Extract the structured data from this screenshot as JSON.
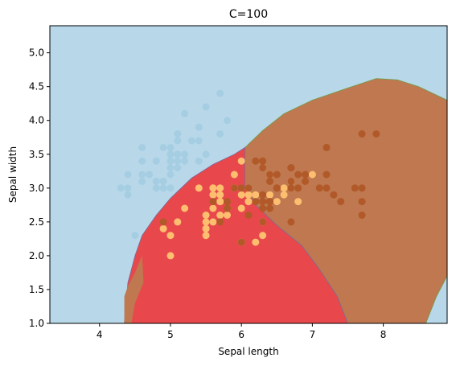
{
  "chart_data": {
    "type": "scatter",
    "title": "C=100",
    "xlabel": "Sepal length",
    "ylabel": "Sepal width",
    "xlim": [
      3.3,
      8.9
    ],
    "ylim": [
      1.0,
      5.4
    ],
    "xticks": [
      "4",
      "5",
      "6",
      "7",
      "8"
    ],
    "xtick_values": [
      4,
      5,
      6,
      7,
      8
    ],
    "yticks": [
      "1.0",
      "1.5",
      "2.0",
      "2.5",
      "3.0",
      "3.5",
      "4.0",
      "4.5",
      "5.0"
    ],
    "ytick_values": [
      1.0,
      1.5,
      2.0,
      2.5,
      3.0,
      3.5,
      4.0,
      4.5,
      5.0
    ],
    "grid": false,
    "legend": "none",
    "regions": [
      {
        "class": "class-0",
        "color": "#b8d8e9"
      },
      {
        "class": "class-1",
        "color": "#e8484c"
      },
      {
        "class": "class-2",
        "color": "#bf7850"
      }
    ],
    "region_boundaries": {
      "class1_polygon": [
        [
          4.35,
          1.0
        ],
        [
          4.4,
          1.6
        ],
        [
          4.5,
          2.0
        ],
        [
          4.6,
          2.3
        ],
        [
          4.8,
          2.6
        ],
        [
          5.0,
          2.85
        ],
        [
          5.3,
          3.15
        ],
        [
          5.6,
          3.35
        ],
        [
          5.9,
          3.5
        ],
        [
          6.05,
          3.6
        ],
        [
          6.05,
          3.0
        ],
        [
          6.2,
          2.75
        ],
        [
          6.5,
          2.45
        ],
        [
          6.85,
          2.15
        ],
        [
          7.1,
          1.8
        ],
        [
          7.35,
          1.4
        ],
        [
          7.5,
          1.0
        ]
      ],
      "class2_polygon": [
        [
          4.35,
          1.0
        ],
        [
          4.35,
          1.4
        ],
        [
          4.4,
          1.55
        ],
        [
          4.5,
          1.75
        ],
        [
          4.6,
          2.0
        ],
        [
          4.62,
          1.6
        ],
        [
          4.5,
          1.3
        ],
        [
          4.45,
          1.0
        ],
        [
          4.35,
          1.0
        ]
      ],
      "class2_main_polygon": [
        [
          6.05,
          3.6
        ],
        [
          6.3,
          3.85
        ],
        [
          6.6,
          4.1
        ],
        [
          7.0,
          4.3
        ],
        [
          7.5,
          4.48
        ],
        [
          7.9,
          4.62
        ],
        [
          8.2,
          4.6
        ],
        [
          8.5,
          4.5
        ],
        [
          8.9,
          4.3
        ],
        [
          8.9,
          1.7
        ],
        [
          8.75,
          1.4
        ],
        [
          8.6,
          1.0
        ],
        [
          7.5,
          1.0
        ],
        [
          7.35,
          1.4
        ],
        [
          7.1,
          1.8
        ],
        [
          6.85,
          2.15
        ],
        [
          6.5,
          2.45
        ],
        [
          6.2,
          2.75
        ],
        [
          6.05,
          3.0
        ]
      ]
    },
    "series": [
      {
        "class": "class-0",
        "color": "#a6cee3",
        "points": [
          [
            5.1,
            3.5
          ],
          [
            4.9,
            3.0
          ],
          [
            4.7,
            3.2
          ],
          [
            4.6,
            3.1
          ],
          [
            5.0,
            3.6
          ],
          [
            5.4,
            3.9
          ],
          [
            4.6,
            3.4
          ],
          [
            5.0,
            3.4
          ],
          [
            4.4,
            2.9
          ],
          [
            4.9,
            3.1
          ],
          [
            5.4,
            3.7
          ],
          [
            4.8,
            3.4
          ],
          [
            4.8,
            3.0
          ],
          [
            4.3,
            3.0
          ],
          [
            5.8,
            4.0
          ],
          [
            5.7,
            4.4
          ],
          [
            5.4,
            3.9
          ],
          [
            5.1,
            3.5
          ],
          [
            5.7,
            3.8
          ],
          [
            5.1,
            3.8
          ],
          [
            5.4,
            3.4
          ],
          [
            5.1,
            3.7
          ],
          [
            4.6,
            3.6
          ],
          [
            5.1,
            3.3
          ],
          [
            4.8,
            3.4
          ],
          [
            5.0,
            3.0
          ],
          [
            5.0,
            3.4
          ],
          [
            5.2,
            3.5
          ],
          [
            5.2,
            3.4
          ],
          [
            4.7,
            3.2
          ],
          [
            4.8,
            3.1
          ],
          [
            5.4,
            3.4
          ],
          [
            5.2,
            4.1
          ],
          [
            5.5,
            4.2
          ],
          [
            4.9,
            3.1
          ],
          [
            5.0,
            3.2
          ],
          [
            5.5,
            3.5
          ],
          [
            4.9,
            3.6
          ],
          [
            4.4,
            3.0
          ],
          [
            5.1,
            3.4
          ],
          [
            5.0,
            3.5
          ],
          [
            4.5,
            2.3
          ],
          [
            4.4,
            3.2
          ],
          [
            5.0,
            3.5
          ],
          [
            5.1,
            3.8
          ],
          [
            4.8,
            3.0
          ],
          [
            5.1,
            3.8
          ],
          [
            4.6,
            3.2
          ],
          [
            5.3,
            3.7
          ],
          [
            5.0,
            3.3
          ]
        ]
      },
      {
        "class": "class-1",
        "color": "#fdbf6f",
        "points": [
          [
            7.0,
            3.2
          ],
          [
            6.4,
            3.2
          ],
          [
            6.9,
            3.1
          ],
          [
            5.5,
            2.3
          ],
          [
            6.5,
            2.8
          ],
          [
            5.7,
            2.8
          ],
          [
            6.3,
            3.3
          ],
          [
            4.9,
            2.4
          ],
          [
            6.6,
            2.9
          ],
          [
            5.2,
            2.7
          ],
          [
            5.0,
            2.0
          ],
          [
            5.9,
            3.0
          ],
          [
            6.0,
            2.2
          ],
          [
            6.1,
            2.9
          ],
          [
            5.6,
            2.9
          ],
          [
            6.7,
            3.1
          ],
          [
            5.6,
            3.0
          ],
          [
            5.8,
            2.7
          ],
          [
            6.2,
            2.2
          ],
          [
            5.6,
            2.5
          ],
          [
            5.9,
            3.2
          ],
          [
            6.1,
            2.8
          ],
          [
            6.3,
            2.5
          ],
          [
            6.1,
            2.8
          ],
          [
            6.4,
            2.9
          ],
          [
            6.6,
            3.0
          ],
          [
            6.8,
            2.8
          ],
          [
            6.7,
            3.0
          ],
          [
            6.0,
            2.9
          ],
          [
            5.7,
            2.6
          ],
          [
            5.5,
            2.4
          ],
          [
            5.5,
            2.4
          ],
          [
            5.8,
            2.7
          ],
          [
            6.0,
            2.7
          ],
          [
            5.4,
            3.0
          ],
          [
            6.0,
            3.4
          ],
          [
            6.7,
            3.1
          ],
          [
            6.3,
            2.3
          ],
          [
            5.6,
            3.0
          ],
          [
            5.5,
            2.5
          ],
          [
            5.5,
            2.6
          ],
          [
            6.1,
            3.0
          ],
          [
            5.8,
            2.6
          ],
          [
            5.0,
            2.3
          ],
          [
            5.6,
            2.7
          ],
          [
            5.7,
            3.0
          ],
          [
            5.7,
            2.9
          ],
          [
            6.2,
            2.9
          ],
          [
            5.1,
            2.5
          ],
          [
            5.7,
            2.8
          ]
        ]
      },
      {
        "class": "class-2",
        "color": "#b15928",
        "points": [
          [
            6.3,
            3.3
          ],
          [
            5.8,
            2.7
          ],
          [
            7.1,
            3.0
          ],
          [
            6.3,
            2.9
          ],
          [
            6.5,
            3.0
          ],
          [
            7.6,
            3.0
          ],
          [
            4.9,
            2.5
          ],
          [
            7.3,
            2.9
          ],
          [
            6.7,
            2.5
          ],
          [
            7.2,
            3.6
          ],
          [
            6.5,
            3.2
          ],
          [
            6.4,
            2.7
          ],
          [
            6.8,
            3.0
          ],
          [
            5.7,
            2.5
          ],
          [
            5.8,
            2.8
          ],
          [
            6.4,
            3.2
          ],
          [
            6.5,
            3.0
          ],
          [
            7.7,
            3.8
          ],
          [
            7.7,
            2.6
          ],
          [
            6.0,
            2.2
          ],
          [
            6.9,
            3.2
          ],
          [
            5.6,
            2.8
          ],
          [
            7.7,
            2.8
          ],
          [
            6.3,
            2.7
          ],
          [
            6.7,
            3.3
          ],
          [
            7.2,
            3.2
          ],
          [
            6.2,
            2.8
          ],
          [
            6.1,
            3.0
          ],
          [
            6.4,
            2.8
          ],
          [
            7.2,
            3.0
          ],
          [
            7.4,
            2.8
          ],
          [
            7.9,
            3.8
          ],
          [
            6.4,
            2.8
          ],
          [
            6.3,
            2.8
          ],
          [
            6.1,
            2.6
          ],
          [
            7.7,
            3.0
          ],
          [
            6.3,
            3.4
          ],
          [
            6.4,
            3.1
          ],
          [
            6.0,
            3.0
          ],
          [
            6.9,
            3.1
          ],
          [
            6.7,
            3.1
          ],
          [
            6.9,
            3.1
          ],
          [
            5.8,
            2.7
          ],
          [
            6.8,
            3.2
          ],
          [
            6.7,
            3.3
          ],
          [
            6.7,
            3.0
          ],
          [
            6.3,
            2.5
          ],
          [
            6.5,
            3.0
          ],
          [
            6.2,
            3.4
          ],
          [
            5.9,
            3.0
          ]
        ]
      }
    ]
  }
}
